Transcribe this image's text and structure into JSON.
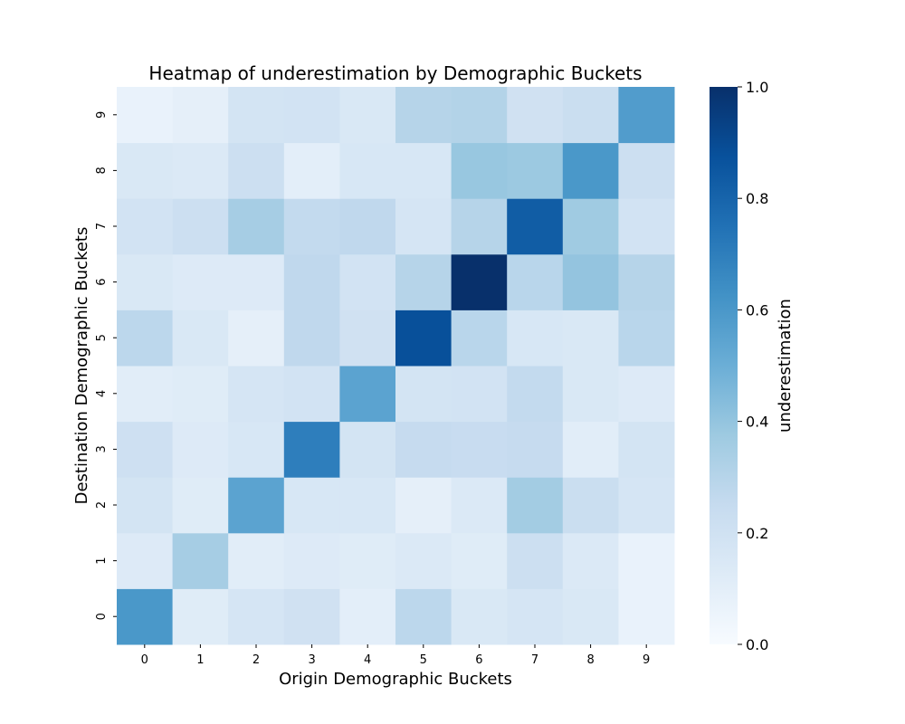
{
  "chart_data": {
    "type": "heatmap",
    "title": "Heatmap of underestimation by Demographic Buckets",
    "xlabel": "Origin Demographic Buckets",
    "ylabel": "Destination Demographic Buckets",
    "x_categories": [
      "0",
      "1",
      "2",
      "3",
      "4",
      "5",
      "6",
      "7",
      "8",
      "9"
    ],
    "y_categories": [
      "0",
      "1",
      "2",
      "3",
      "4",
      "5",
      "6",
      "7",
      "8",
      "9"
    ],
    "y_order": "bottom-to-top",
    "colorbar": {
      "label": "underestimation",
      "range": [
        0,
        1
      ],
      "ticks": [
        "0.0",
        "0.2",
        "0.4",
        "0.6",
        "0.8",
        "1.0"
      ],
      "colormap": "Blues"
    },
    "values": [
      [
        0.6,
        0.12,
        0.17,
        0.2,
        0.1,
        0.28,
        0.15,
        0.17,
        0.15,
        0.07
      ],
      [
        0.13,
        0.35,
        0.11,
        0.13,
        0.12,
        0.14,
        0.12,
        0.22,
        0.14,
        0.07
      ],
      [
        0.18,
        0.12,
        0.55,
        0.16,
        0.16,
        0.09,
        0.14,
        0.36,
        0.23,
        0.17
      ],
      [
        0.21,
        0.13,
        0.16,
        0.7,
        0.18,
        0.25,
        0.24,
        0.25,
        0.11,
        0.18
      ],
      [
        0.11,
        0.12,
        0.17,
        0.19,
        0.55,
        0.18,
        0.19,
        0.26,
        0.15,
        0.13
      ],
      [
        0.28,
        0.15,
        0.09,
        0.27,
        0.2,
        0.88,
        0.29,
        0.16,
        0.15,
        0.29
      ],
      [
        0.15,
        0.13,
        0.13,
        0.27,
        0.19,
        0.3,
        1.0,
        0.29,
        0.4,
        0.3
      ],
      [
        0.19,
        0.22,
        0.35,
        0.26,
        0.27,
        0.17,
        0.3,
        0.83,
        0.37,
        0.19
      ],
      [
        0.15,
        0.14,
        0.22,
        0.1,
        0.16,
        0.16,
        0.39,
        0.38,
        0.6,
        0.22
      ],
      [
        0.07,
        0.09,
        0.18,
        0.19,
        0.15,
        0.3,
        0.31,
        0.2,
        0.23,
        0.58
      ]
    ]
  }
}
